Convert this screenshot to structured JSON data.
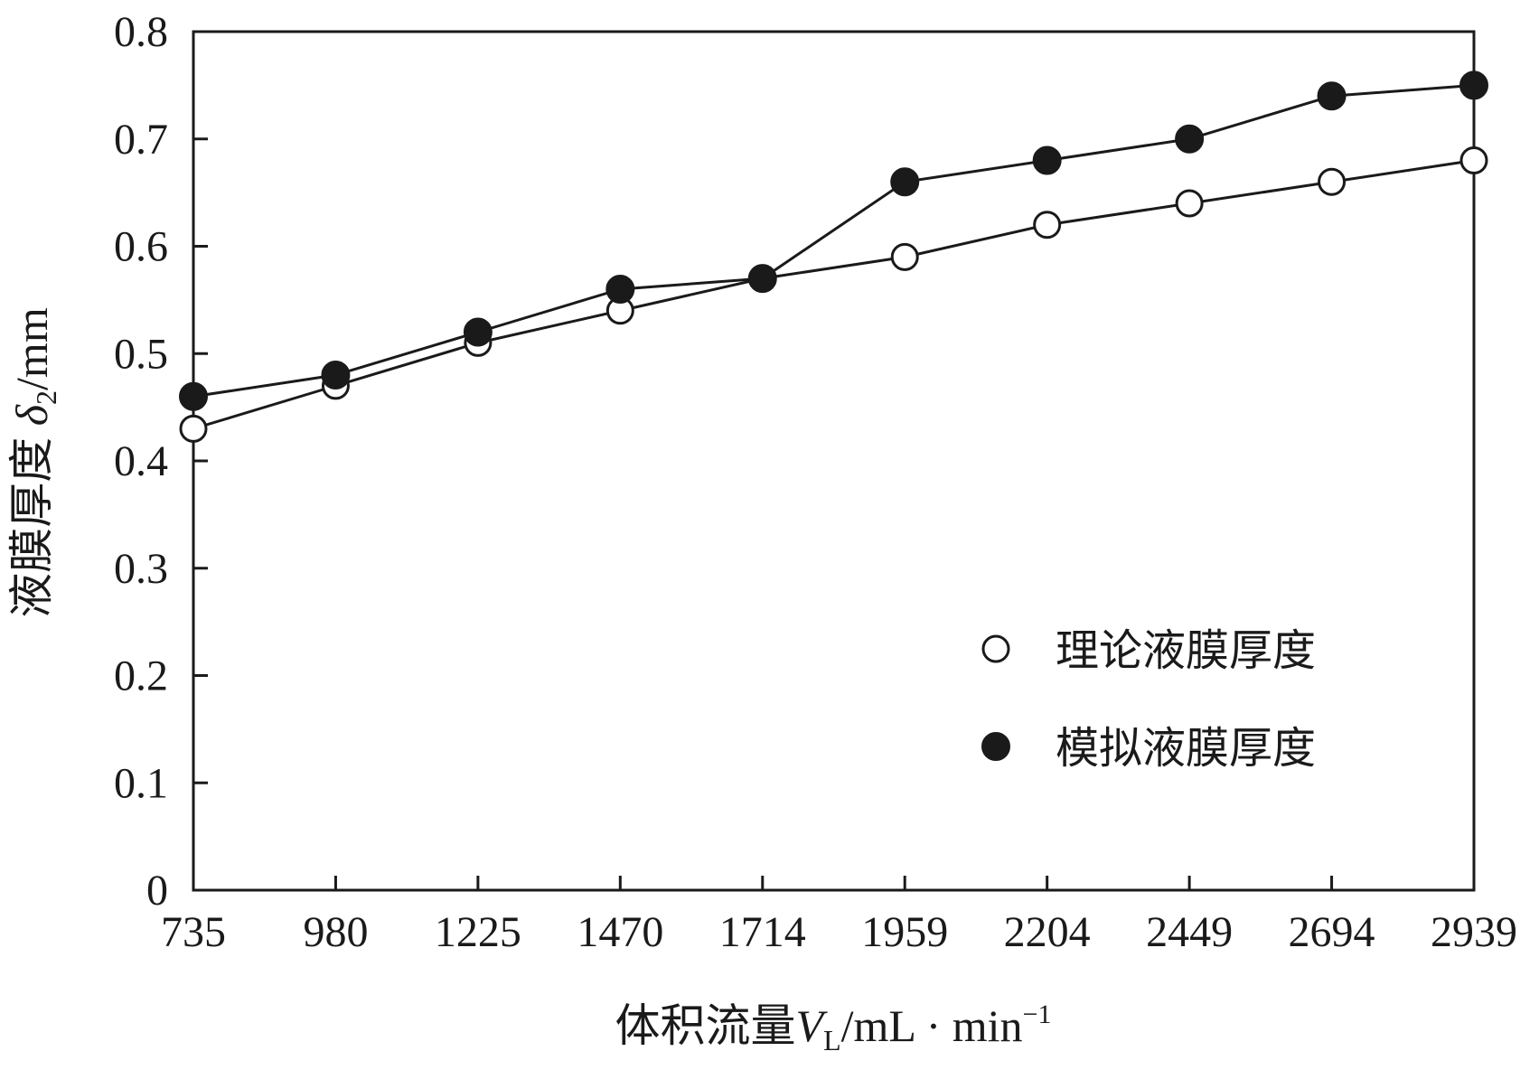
{
  "chart_data": {
    "type": "line",
    "categories": [
      "735",
      "980",
      "1225",
      "1470",
      "1714",
      "1959",
      "2204",
      "2449",
      "2694",
      "2939"
    ],
    "series": [
      {
        "name": "理论液膜厚度",
        "marker": "open-circle",
        "values": [
          0.43,
          0.47,
          0.51,
          0.54,
          0.57,
          0.59,
          0.62,
          0.64,
          0.66,
          0.68
        ]
      },
      {
        "name": "模拟液膜厚度",
        "marker": "filled-circle",
        "values": [
          0.46,
          0.48,
          0.52,
          0.56,
          0.57,
          0.66,
          0.68,
          0.7,
          0.74,
          0.75
        ]
      }
    ],
    "xlabel": {
      "prefix": "体积流量",
      "var": "V",
      "sub": "L",
      "unit": "/mL · min",
      "sup": "−1"
    },
    "ylabel": {
      "prefix": "液膜厚度 ",
      "var": "δ",
      "sub": "2",
      "unit": "/mm"
    },
    "ylim": [
      0,
      0.8
    ],
    "yticks": [
      "0",
      "0.1",
      "0.2",
      "0.3",
      "0.4",
      "0.5",
      "0.6",
      "0.7",
      "0.8"
    ],
    "grid": false,
    "legend_position": "bottom-right",
    "line_color": "#1a1a1a"
  }
}
